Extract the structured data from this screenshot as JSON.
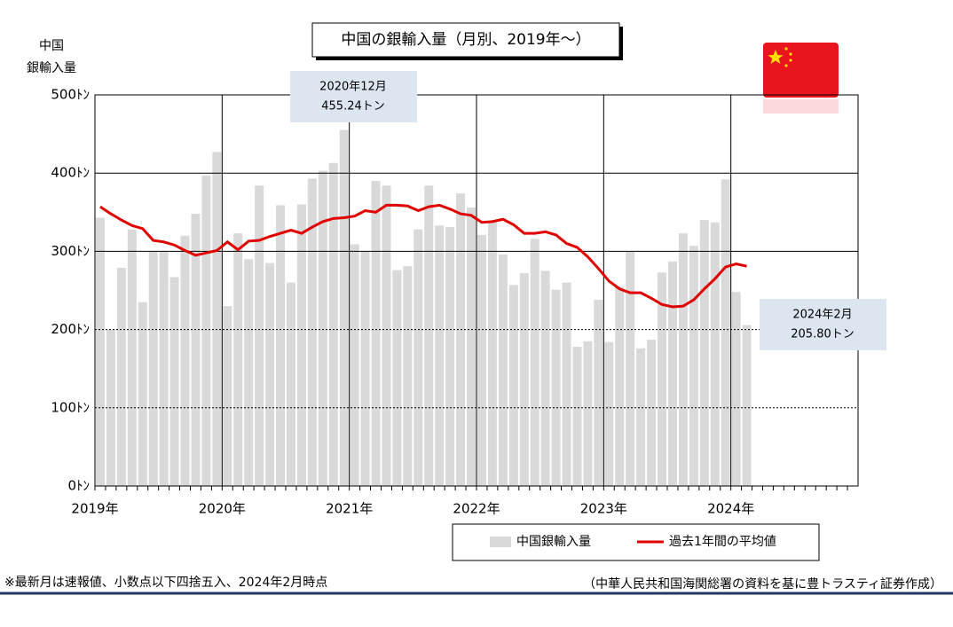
{
  "chart_data": {
    "type": "bar_line",
    "title": "中国の銀輸入量（月別、2019年～）",
    "y_label": [
      "中国",
      "銀輸入量"
    ],
    "categories": [
      "2019年",
      null,
      null,
      null,
      null,
      null,
      null,
      null,
      null,
      null,
      null,
      null,
      "2020年",
      null,
      null,
      null,
      null,
      null,
      null,
      null,
      null,
      null,
      null,
      null,
      "2021年",
      null,
      null,
      null,
      null,
      null,
      null,
      null,
      null,
      null,
      null,
      null,
      "2022年",
      null,
      null,
      null,
      null,
      null,
      null,
      null,
      null,
      null,
      null,
      null,
      "2023年",
      null,
      null,
      null,
      null,
      null,
      null,
      null,
      null,
      null,
      null,
      null,
      "2024年",
      null,
      null,
      null,
      null,
      null,
      null,
      null,
      null,
      null,
      null,
      null
    ],
    "series": [
      {
        "name": "中国銀輸入量",
        "color": "#d9d9d9",
        "kind": "bar",
        "values": [
          343,
          200,
          279,
          328,
          235,
          300,
          300,
          267,
          320,
          348,
          397,
          427,
          230,
          323,
          290,
          384,
          285,
          359,
          260,
          360,
          393,
          403,
          413,
          455.24,
          309,
          300,
          390,
          384,
          276,
          281,
          328,
          384,
          333,
          331,
          374,
          356,
          321,
          337,
          296,
          257,
          272,
          316,
          275,
          251,
          260,
          178,
          185,
          238,
          184,
          255,
          300,
          176,
          187,
          273,
          287,
          323,
          307,
          340,
          337,
          392,
          248,
          205.8,
          null,
          null,
          null,
          null,
          null,
          null,
          null,
          null,
          null,
          null
        ]
      },
      {
        "name": "過去1年間の平均値",
        "color": "#e00000",
        "kind": "line",
        "values": [
          357,
          348,
          340,
          333,
          329,
          314,
          312,
          308,
          301,
          295,
          298,
          301,
          312,
          302,
          313,
          314,
          319,
          323,
          327,
          323,
          331,
          338,
          342,
          343,
          345,
          352,
          350,
          359,
          359,
          358,
          352,
          357,
          359,
          354,
          348,
          346,
          337,
          338,
          341,
          334,
          323,
          323,
          325,
          321,
          310,
          305,
          293,
          278,
          262,
          252,
          247,
          247,
          240,
          232,
          229,
          230,
          238,
          252,
          265,
          280,
          284,
          281,
          null,
          null,
          null,
          null,
          null,
          null,
          null,
          null,
          null,
          null
        ]
      }
    ],
    "ylim": [
      0,
      500
    ],
    "yticks": [
      {
        "value": 0,
        "label": "0ﾄﾝ"
      },
      {
        "value": 100,
        "label": "100ﾄﾝ"
      },
      {
        "value": 200,
        "label": "200ﾄﾝ"
      },
      {
        "value": 300,
        "label": "300ﾄﾝ"
      },
      {
        "value": 400,
        "label": "400ﾄﾝ"
      },
      {
        "value": 500,
        "label": "500ﾄﾝ"
      }
    ],
    "grid": true,
    "annotations": [
      {
        "lines": [
          "2020年12月",
          "455.24トン"
        ]
      },
      {
        "lines": [
          "2024年2月",
          "205.80トン"
        ]
      }
    ],
    "notes": [
      "※最新月は速報値、小数点以下四捨五入、2024年2月時点",
      "（中華人民共和国海関総署の資料を基に豊トラスティ証券作成）"
    ]
  }
}
